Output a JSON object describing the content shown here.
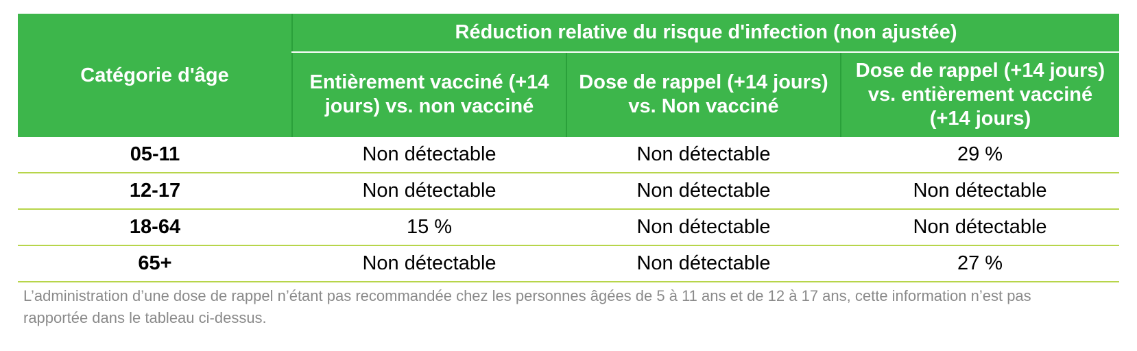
{
  "table": {
    "group_header": "Réduction relative du risque d'infection (non ajustée)",
    "age_header": "Catégorie d'âge",
    "sub_headers": [
      "Entièrement vacciné (+14 jours) vs. non vacciné",
      "Dose de rappel (+14 jours) vs. Non vacciné",
      "Dose de rappel (+14 jours) vs. entièrement vacciné (+14 jours)"
    ],
    "rows": [
      {
        "age": "05-11",
        "values": [
          "Non détectable",
          "Non détectable",
          "29 %"
        ]
      },
      {
        "age": "12-17",
        "values": [
          "Non détectable",
          "Non détectable",
          "Non détectable"
        ]
      },
      {
        "age": "18-64",
        "values": [
          "15 %",
          "Non détectable",
          "Non détectable"
        ]
      },
      {
        "age": "65+",
        "values": [
          "Non détectable",
          "Non détectable",
          "27 %"
        ]
      }
    ]
  },
  "footnote": "L’administration d’une dose de rappel n’étant pas recommandée chez les personnes âgées de 5 à 11 ans et de 12 à 17 ans, cette information n’est pas rapportée dans le tableau ci-dessus.",
  "colors": {
    "header_green": "#3db64b",
    "row_divider": "#b7d54a",
    "footnote_gray": "#8a8a8a"
  }
}
